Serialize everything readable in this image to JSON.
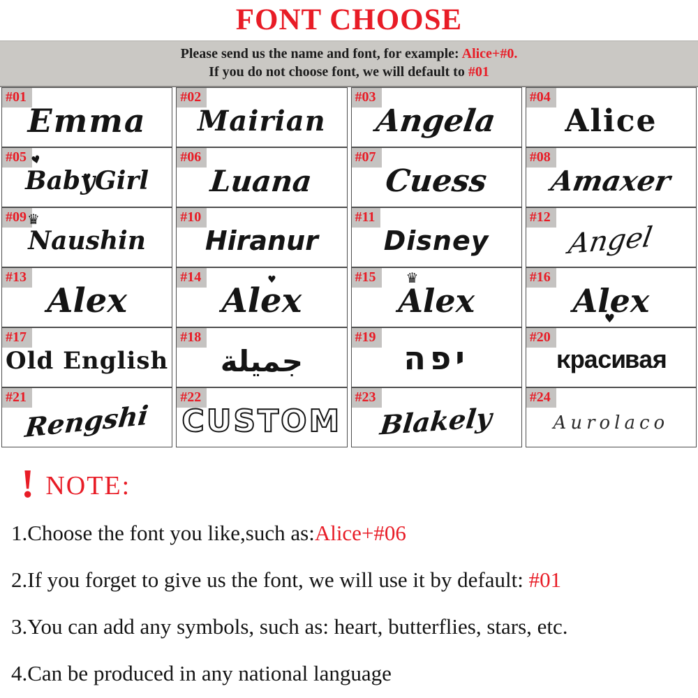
{
  "title": "FONT CHOOSE",
  "banner": {
    "line1_black": "Please send us the name and font, for example: ",
    "line1_red": "Alice+#0.",
    "line2_black": "If you do not choose  font, we will default to ",
    "line2_red": "#01"
  },
  "grid": {
    "cells": [
      {
        "id": "#01",
        "name": "Emma"
      },
      {
        "id": "#02",
        "name": "Mairian"
      },
      {
        "id": "#03",
        "name": "Angela"
      },
      {
        "id": "#04",
        "name": "Alice"
      },
      {
        "id": "#05",
        "name": "BabyGirl",
        "decor": "hearts",
        "decor_glyph": "♥"
      },
      {
        "id": "#06",
        "name": "Luana"
      },
      {
        "id": "#07",
        "name": "Cuess"
      },
      {
        "id": "#08",
        "name": "Amaxer"
      },
      {
        "id": "#09",
        "name": "Naushin",
        "decor": "crown",
        "decor_glyph": "♛"
      },
      {
        "id": "#10",
        "name": "Hiranur"
      },
      {
        "id": "#11",
        "name": "Disney"
      },
      {
        "id": "#12",
        "name": "Angel"
      },
      {
        "id": "#13",
        "name": "Alex"
      },
      {
        "id": "#14",
        "name": "Alex",
        "decor": "heart-top",
        "decor_glyph": "♥"
      },
      {
        "id": "#15",
        "name": "Alex",
        "decor": "crown",
        "decor_glyph": "♛"
      },
      {
        "id": "#16",
        "name": "Alex",
        "decor": "heart-bottom",
        "decor_glyph": "♥"
      },
      {
        "id": "#17",
        "name": "Old English"
      },
      {
        "id": "#18",
        "name": "جميلة"
      },
      {
        "id": "#19",
        "name": "יפה"
      },
      {
        "id": "#20",
        "name": "красивая"
      },
      {
        "id": "#21",
        "name": "Rengshi"
      },
      {
        "id": "#22",
        "name": "CUSTOM"
      },
      {
        "id": "#23",
        "name": "Blakely"
      },
      {
        "id": "#24",
        "name": "Aurolaco"
      }
    ]
  },
  "note": {
    "exclamation": "!",
    "heading": "NOTE:",
    "items": [
      {
        "pre": "1.Choose the font you like,such as:",
        "red": "Alice+#06"
      },
      {
        "pre": "2.If you forget to give us the font, we will use it by default: ",
        "red": "#01"
      },
      {
        "pre": "3.You can add any symbols, such as: heart, butterflies, stars, etc.",
        "red": ""
      },
      {
        "pre": "4.Can be produced in any national language",
        "red": ""
      }
    ]
  },
  "colors": {
    "accent_red": "#e81c26",
    "banner_bg": "#cac8c4",
    "badge_bg": "#c5c3c1",
    "cell_border": "#4d4d4d",
    "text_black": "#141414"
  }
}
